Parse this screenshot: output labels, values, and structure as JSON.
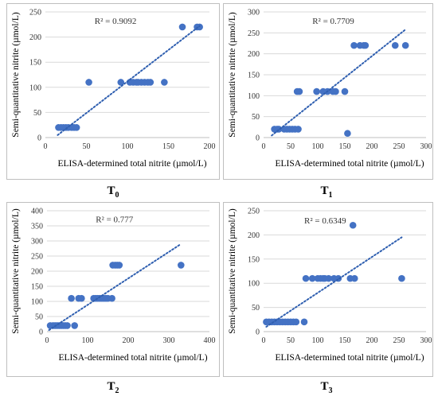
{
  "colors": {
    "point": "#4472c4",
    "trend": "#2f5fb0",
    "grid": "#d9d9d9",
    "frame": "#bfbfbf"
  },
  "chart_data": [
    {
      "type": "scatter",
      "label": "T",
      "label_sub": "0",
      "xlabel": "ELISA-determined total nitrite (µmol/L)",
      "ylabel": "Semi-quantitative nitrite (µmol/L)",
      "xlim": [
        0,
        200
      ],
      "ylim": [
        0,
        250
      ],
      "xticks": [
        0,
        50,
        100,
        150,
        200
      ],
      "yticks": [
        0,
        50,
        100,
        150,
        200,
        250
      ],
      "r2": "R² = 0.9092",
      "trendline": [
        [
          15,
          5
        ],
        [
          188,
          222
        ]
      ],
      "grid": true,
      "points": [
        [
          16,
          20
        ],
        [
          19,
          20
        ],
        [
          22,
          20
        ],
        [
          25,
          20
        ],
        [
          28,
          20
        ],
        [
          32,
          20
        ],
        [
          35,
          20
        ],
        [
          38,
          20
        ],
        [
          53,
          110
        ],
        [
          92,
          110
        ],
        [
          103,
          110
        ],
        [
          107,
          110
        ],
        [
          111,
          110
        ],
        [
          113,
          110
        ],
        [
          117,
          110
        ],
        [
          121,
          110
        ],
        [
          125,
          110
        ],
        [
          128,
          110
        ],
        [
          145,
          110
        ],
        [
          167,
          220
        ],
        [
          185,
          220
        ],
        [
          188,
          220
        ]
      ]
    },
    {
      "type": "scatter",
      "label": "T",
      "label_sub": "1",
      "xlabel": "ELISA-determined total nitrite (µmol/L)",
      "ylabel": "Semi-quantitative nitrite (µmol/L)",
      "xlim": [
        0,
        300
      ],
      "ylim": [
        0,
        300
      ],
      "xticks": [
        0,
        50,
        100,
        150,
        200,
        250,
        300
      ],
      "yticks": [
        0,
        50,
        100,
        150,
        200,
        250,
        300
      ],
      "r2": "R² = 0.7709",
      "trendline": [
        [
          15,
          5
        ],
        [
          262,
          258
        ]
      ],
      "grid": true,
      "points": [
        [
          20,
          20
        ],
        [
          25,
          20
        ],
        [
          28,
          20
        ],
        [
          38,
          20
        ],
        [
          43,
          20
        ],
        [
          48,
          20
        ],
        [
          53,
          20
        ],
        [
          58,
          20
        ],
        [
          64,
          20
        ],
        [
          62,
          110
        ],
        [
          66,
          110
        ],
        [
          98,
          110
        ],
        [
          110,
          110
        ],
        [
          118,
          110
        ],
        [
          128,
          110
        ],
        [
          133,
          110
        ],
        [
          150,
          110
        ],
        [
          155,
          10
        ],
        [
          167,
          220
        ],
        [
          178,
          220
        ],
        [
          185,
          220
        ],
        [
          188,
          220
        ],
        [
          243,
          220
        ],
        [
          262,
          220
        ]
      ]
    },
    {
      "type": "scatter",
      "label": "T",
      "label_sub": "2",
      "xlabel": "ELISA-determined total nitrite (µmol/L)",
      "ylabel": "Semi-quantitative nitrite (µmol/L)",
      "xlim": [
        0,
        400
      ],
      "ylim": [
        0,
        400
      ],
      "xticks": [
        0,
        100,
        200,
        300,
        400
      ],
      "yticks": [
        0,
        50,
        100,
        150,
        200,
        250,
        300,
        350,
        400
      ],
      "r2": "R² = 0.777",
      "trendline": [
        [
          5,
          5
        ],
        [
          330,
          290
        ]
      ],
      "grid": true,
      "points": [
        [
          8,
          20
        ],
        [
          15,
          20
        ],
        [
          20,
          20
        ],
        [
          25,
          20
        ],
        [
          30,
          20
        ],
        [
          35,
          20
        ],
        [
          40,
          20
        ],
        [
          45,
          20
        ],
        [
          50,
          20
        ],
        [
          68,
          20
        ],
        [
          60,
          110
        ],
        [
          78,
          110
        ],
        [
          85,
          110
        ],
        [
          115,
          110
        ],
        [
          120,
          110
        ],
        [
          125,
          110
        ],
        [
          130,
          110
        ],
        [
          135,
          110
        ],
        [
          140,
          110
        ],
        [
          145,
          110
        ],
        [
          150,
          110
        ],
        [
          160,
          110
        ],
        [
          162,
          220
        ],
        [
          168,
          220
        ],
        [
          173,
          220
        ],
        [
          178,
          220
        ],
        [
          330,
          220
        ]
      ]
    },
    {
      "type": "scatter",
      "label": "T",
      "label_sub": "3",
      "xlabel": "ELISA-determined total nitrite (µmol/L)",
      "ylabel": "Semi-quantitative nitrite (µmol/L)",
      "xlim": [
        0,
        300
      ],
      "ylim": [
        0,
        250
      ],
      "xticks": [
        0,
        50,
        100,
        150,
        200,
        250,
        300
      ],
      "yticks": [
        0,
        50,
        100,
        150,
        200,
        250
      ],
      "r2": "R² = 0.6349",
      "trendline": [
        [
          5,
          10
        ],
        [
          255,
          195
        ]
      ],
      "grid": true,
      "points": [
        [
          5,
          20
        ],
        [
          10,
          20
        ],
        [
          15,
          20
        ],
        [
          20,
          20
        ],
        [
          25,
          20
        ],
        [
          30,
          20
        ],
        [
          35,
          20
        ],
        [
          40,
          20
        ],
        [
          45,
          20
        ],
        [
          50,
          20
        ],
        [
          55,
          20
        ],
        [
          60,
          20
        ],
        [
          75,
          20
        ],
        [
          78,
          110
        ],
        [
          90,
          110
        ],
        [
          100,
          110
        ],
        [
          105,
          110
        ],
        [
          110,
          110
        ],
        [
          113,
          110
        ],
        [
          120,
          110
        ],
        [
          130,
          110
        ],
        [
          138,
          110
        ],
        [
          160,
          110
        ],
        [
          168,
          110
        ],
        [
          165,
          220
        ],
        [
          255,
          110
        ]
      ]
    }
  ]
}
